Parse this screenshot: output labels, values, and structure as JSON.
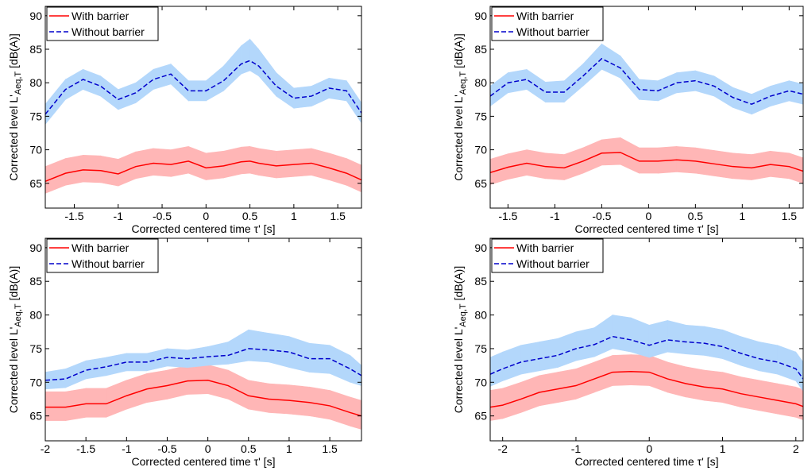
{
  "chart_data": [
    {
      "type": "line",
      "xlabel": "Corrected centered time τ' [s]",
      "ylabel": {
        "main": "Corrected level L'",
        "sub": "Aeq,T",
        "unit": "[dB(A)]"
      },
      "xlim": [
        -1.83,
        1.77
      ],
      "xticks": [
        -1.5,
        -1,
        -0.5,
        0,
        0.5,
        1,
        1.5
      ],
      "ylim": [
        61.3,
        91.4
      ],
      "yticks": [
        65,
        70,
        75,
        80,
        85,
        90
      ],
      "legend": "upper left",
      "x": [
        -1.83,
        -1.6,
        -1.4,
        -1.2,
        -1,
        -0.8,
        -0.6,
        -0.4,
        -0.2,
        0,
        0.2,
        0.4,
        0.5,
        0.6,
        0.8,
        1,
        1.2,
        1.4,
        1.6,
        1.77
      ],
      "series": [
        {
          "name": "With barrier",
          "color": "#ff0000",
          "band_color": "#ffb6b6",
          "dash": false,
          "values": [
            65.3,
            66.5,
            67,
            66.9,
            66.4,
            67.5,
            68,
            67.8,
            68.3,
            67.3,
            67.6,
            68.2,
            68.3,
            68,
            67.6,
            67.8,
            68,
            67.3,
            66.5,
            65.5
          ],
          "lower": [
            63.5,
            64.7,
            65.2,
            65.1,
            64.6,
            65.7,
            66.2,
            66,
            66.5,
            65.5,
            65.8,
            66.4,
            66.5,
            66.2,
            65.8,
            66,
            66.2,
            65.5,
            64.7,
            63.7
          ],
          "upper": [
            67.5,
            68.7,
            69.2,
            69.1,
            68.6,
            69.7,
            70.2,
            70,
            70.5,
            69.5,
            69.8,
            70.4,
            70.5,
            70.2,
            69.8,
            70,
            70.2,
            69.5,
            68.7,
            67.7
          ]
        },
        {
          "name": "Without barrier",
          "color": "#0000cc",
          "band_color": "#b3d7fb",
          "dash": true,
          "values": [
            75.3,
            79,
            80.5,
            79.5,
            77.5,
            78.5,
            80.5,
            81.3,
            78.8,
            78.8,
            80.3,
            82.8,
            83.3,
            82.5,
            79.5,
            77.7,
            78,
            79.2,
            78.8,
            75.5
          ],
          "lower": [
            73.8,
            77.5,
            79,
            78,
            76,
            77,
            79,
            79.8,
            77.3,
            77.3,
            78.8,
            81.3,
            81.8,
            81,
            78,
            76.2,
            76.5,
            77.7,
            77.3,
            74
          ],
          "upper": [
            76.8,
            80.5,
            82,
            81,
            79,
            80,
            82,
            82.8,
            80.3,
            80.3,
            82.5,
            85.5,
            86.5,
            85,
            81.5,
            79.2,
            79.5,
            80.7,
            80.3,
            77
          ]
        }
      ]
    },
    {
      "type": "line",
      "xlabel": "Corrected centered time τ' [s]",
      "ylabel": {
        "main": "Corrected level L'",
        "sub": "Aeq,T",
        "unit": "[dB(A)]"
      },
      "xlim": [
        -1.69,
        1.65
      ],
      "xticks": [
        -1.5,
        -1,
        -0.5,
        0,
        0.5,
        1,
        1.5
      ],
      "ylim": [
        61.3,
        91.4
      ],
      "yticks": [
        65,
        70,
        75,
        80,
        85,
        90
      ],
      "legend": "upper left",
      "x": [
        -1.69,
        -1.5,
        -1.3,
        -1.1,
        -0.9,
        -0.7,
        -0.5,
        -0.3,
        -0.1,
        0.1,
        0.3,
        0.5,
        0.7,
        0.9,
        1.1,
        1.3,
        1.5,
        1.65
      ],
      "series": [
        {
          "name": "With barrier",
          "color": "#ff0000",
          "band_color": "#ffb6b6",
          "dash": false,
          "values": [
            66.6,
            67.4,
            68,
            67.5,
            67.3,
            68.3,
            69.5,
            69.6,
            68.3,
            68.3,
            68.5,
            68.3,
            67.9,
            67.5,
            67.3,
            67.8,
            67.5,
            66.8
          ],
          "lower": [
            64.8,
            65.6,
            66.2,
            65.7,
            65.5,
            66.5,
            67.7,
            67.8,
            66.5,
            66.5,
            66.7,
            66.5,
            66.1,
            65.7,
            65.5,
            66,
            65.7,
            65
          ],
          "upper": [
            68.6,
            69.4,
            70,
            69.5,
            69.3,
            70.3,
            71.5,
            71.8,
            70.3,
            70.3,
            70.5,
            70.3,
            69.9,
            69.5,
            69.3,
            69.8,
            69.5,
            68.8
          ]
        },
        {
          "name": "Without barrier",
          "color": "#0000cc",
          "band_color": "#b3d7fb",
          "dash": true,
          "values": [
            78,
            80,
            80.5,
            78.6,
            78.6,
            81,
            83.6,
            82.2,
            79,
            78.8,
            80,
            80.3,
            79.5,
            77.8,
            76.8,
            78,
            78.8,
            78.3
          ],
          "lower": [
            76.5,
            78.5,
            79,
            77.1,
            77.1,
            79.5,
            82,
            80.7,
            77.5,
            77.3,
            78.5,
            78.8,
            78,
            76.3,
            75.3,
            76.5,
            77.3,
            76.8
          ],
          "upper": [
            79.5,
            81.5,
            82,
            80.1,
            80.3,
            82.8,
            85.8,
            84,
            80.5,
            80.3,
            81.5,
            81.8,
            81,
            79.3,
            78.3,
            79.5,
            80.3,
            79.8
          ]
        }
      ]
    },
    {
      "type": "line",
      "xlabel": "Corrected centered time τ' [s]",
      "ylabel": {
        "main": "Corrected level L'",
        "sub": "Aeq,T",
        "unit": "[dB(A)]"
      },
      "xlim": [
        -2,
        1.89
      ],
      "xticks": [
        -2,
        -1.5,
        -1,
        -0.5,
        0,
        0.5,
        1,
        1.5
      ],
      "ylim": [
        61.3,
        91.4
      ],
      "yticks": [
        65,
        70,
        75,
        80,
        85,
        90
      ],
      "legend": "upper left",
      "x": [
        -2,
        -1.75,
        -1.5,
        -1.25,
        -1,
        -0.75,
        -0.5,
        -0.25,
        0,
        0.25,
        0.5,
        0.75,
        1,
        1.25,
        1.5,
        1.75,
        1.89
      ],
      "series": [
        {
          "name": "With barrier",
          "color": "#ff0000",
          "band_color": "#ffb6b6",
          "dash": false,
          "values": [
            66.3,
            66.3,
            66.8,
            66.8,
            68,
            69,
            69.5,
            70.2,
            70.3,
            69.5,
            68,
            67.5,
            67.3,
            67,
            66.5,
            65.5,
            65
          ],
          "lower": [
            64.3,
            64.3,
            64.8,
            64.8,
            66,
            67,
            67.5,
            68.2,
            68.3,
            67.5,
            66,
            65.5,
            65.3,
            65,
            64.5,
            63.5,
            63
          ],
          "upper": [
            68.6,
            68.6,
            69.1,
            69.1,
            70.3,
            71.3,
            71.8,
            72.5,
            72.6,
            71.8,
            70.3,
            69.8,
            69.6,
            69.3,
            68.8,
            67.8,
            67.3
          ]
        },
        {
          "name": "Without barrier",
          "color": "#0000cc",
          "band_color": "#b3d7fb",
          "dash": true,
          "values": [
            70.3,
            70.5,
            71.8,
            72.3,
            73,
            73,
            73.7,
            73.5,
            73.8,
            74,
            75,
            74.8,
            74.5,
            73.5,
            73.5,
            72,
            71
          ],
          "lower": [
            69,
            69.2,
            70.5,
            71,
            71.7,
            71.7,
            72.4,
            72.2,
            72.5,
            72.7,
            73.2,
            73,
            72.2,
            71.5,
            71.3,
            70,
            69.5
          ],
          "upper": [
            71.5,
            72,
            73.2,
            73.7,
            74.3,
            74.3,
            75,
            74.8,
            75.3,
            76,
            77.8,
            77.3,
            76.8,
            75.8,
            75.5,
            74,
            72.5
          ]
        }
      ]
    },
    {
      "type": "line",
      "xlabel": "Corrected centered time τ' [s]",
      "ylabel": {
        "main": "Corrected level L'",
        "sub": "Aeq,T",
        "unit": "[dB(A)]"
      },
      "xlim": [
        -2.17,
        2.1
      ],
      "xticks": [
        -2,
        -1,
        0,
        1,
        2
      ],
      "ylim": [
        61.3,
        91.4
      ],
      "yticks": [
        65,
        70,
        75,
        80,
        85,
        90
      ],
      "legend": "upper left",
      "x": [
        -2.17,
        -2,
        -1.75,
        -1.5,
        -1.25,
        -1,
        -0.75,
        -0.5,
        -0.25,
        0,
        0.25,
        0.5,
        0.75,
        1,
        1.25,
        1.5,
        1.75,
        2,
        2.1
      ],
      "series": [
        {
          "name": "With barrier",
          "color": "#ff0000",
          "band_color": "#ffb6b6",
          "dash": false,
          "values": [
            66.3,
            66.6,
            67.5,
            68.5,
            69,
            69.5,
            70.5,
            71.5,
            71.6,
            71.5,
            70.5,
            69.8,
            69.3,
            69,
            68.3,
            67.8,
            67.3,
            66.8,
            66.4
          ],
          "lower": [
            64.3,
            64.6,
            65.5,
            66.5,
            67,
            67.5,
            68.5,
            69.5,
            69.6,
            69.5,
            68.5,
            67.8,
            67.3,
            67,
            66.3,
            65.8,
            65.3,
            64.8,
            64.4
          ],
          "upper": [
            68.8,
            69.1,
            70,
            71,
            71.5,
            72,
            73,
            74,
            74.1,
            74,
            73,
            72.3,
            71.8,
            71.5,
            70.8,
            70.3,
            69.8,
            69.3,
            68.9
          ]
        },
        {
          "name": "Without barrier",
          "color": "#0000cc",
          "band_color": "#b3d7fb",
          "dash": true,
          "values": [
            71.2,
            72,
            73,
            73.5,
            74,
            75,
            75.6,
            76.8,
            76.3,
            75.5,
            76.3,
            76,
            75.8,
            75.3,
            74.3,
            73.5,
            73,
            72,
            70.5
          ],
          "lower": [
            69.4,
            70.2,
            71.2,
            71.7,
            72.2,
            73.2,
            73.8,
            75,
            74.5,
            73.7,
            74.5,
            74.2,
            74,
            73.5,
            72.5,
            71.7,
            71.2,
            70.2,
            68.7
          ],
          "upper": [
            73.7,
            74.5,
            75.5,
            76,
            76.5,
            77.5,
            78.1,
            80,
            79.6,
            78.5,
            79.2,
            78.5,
            78.3,
            77.8,
            76.8,
            76,
            75.5,
            74.5,
            73
          ]
        }
      ]
    }
  ]
}
